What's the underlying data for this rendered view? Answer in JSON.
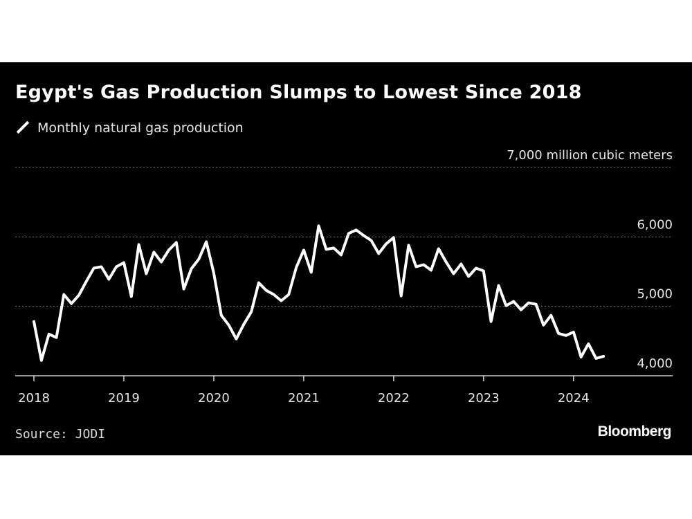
{
  "title": "Egypt's Gas Production Slumps to Lowest Since 2018",
  "legend": {
    "label": "Monthly natural gas production"
  },
  "source": "Source: JODI",
  "brand": "Bloomberg",
  "colors": {
    "background": "#000000",
    "line": "#ffffff",
    "grid": "#7a7a7a",
    "page": "#ffffff"
  },
  "chart_data": {
    "type": "line",
    "ylabel": "7,000 million cubic meters",
    "ylim": [
      4000,
      7000
    ],
    "y_ticks": [
      {
        "value": 7000,
        "label": "7,000 million cubic meters"
      },
      {
        "value": 6000,
        "label": "6,000"
      },
      {
        "value": 5000,
        "label": "5,000"
      },
      {
        "value": 4000,
        "label": "4,000"
      }
    ],
    "x_ticks": [
      "2018",
      "2019",
      "2020",
      "2021",
      "2022",
      "2023",
      "2024"
    ],
    "x_start": "2018-01",
    "grid": true,
    "series": [
      {
        "name": "Monthly natural gas production",
        "values": [
          4780,
          4220,
          4600,
          4550,
          5170,
          5040,
          5160,
          5360,
          5550,
          5570,
          5390,
          5570,
          5630,
          5140,
          5890,
          5470,
          5780,
          5640,
          5810,
          5920,
          5250,
          5540,
          5680,
          5930,
          5480,
          4870,
          4730,
          4530,
          4740,
          4920,
          5340,
          5230,
          5170,
          5080,
          5170,
          5560,
          5810,
          5490,
          6160,
          5820,
          5840,
          5740,
          6050,
          6100,
          6020,
          5950,
          5760,
          5900,
          5990,
          5150,
          5880,
          5570,
          5600,
          5520,
          5830,
          5640,
          5470,
          5610,
          5430,
          5550,
          5510,
          4780,
          5300,
          5010,
          5070,
          4950,
          5050,
          5030,
          4730,
          4870,
          4610,
          4580,
          4630,
          4270,
          4460,
          4250,
          4280
        ]
      }
    ]
  }
}
